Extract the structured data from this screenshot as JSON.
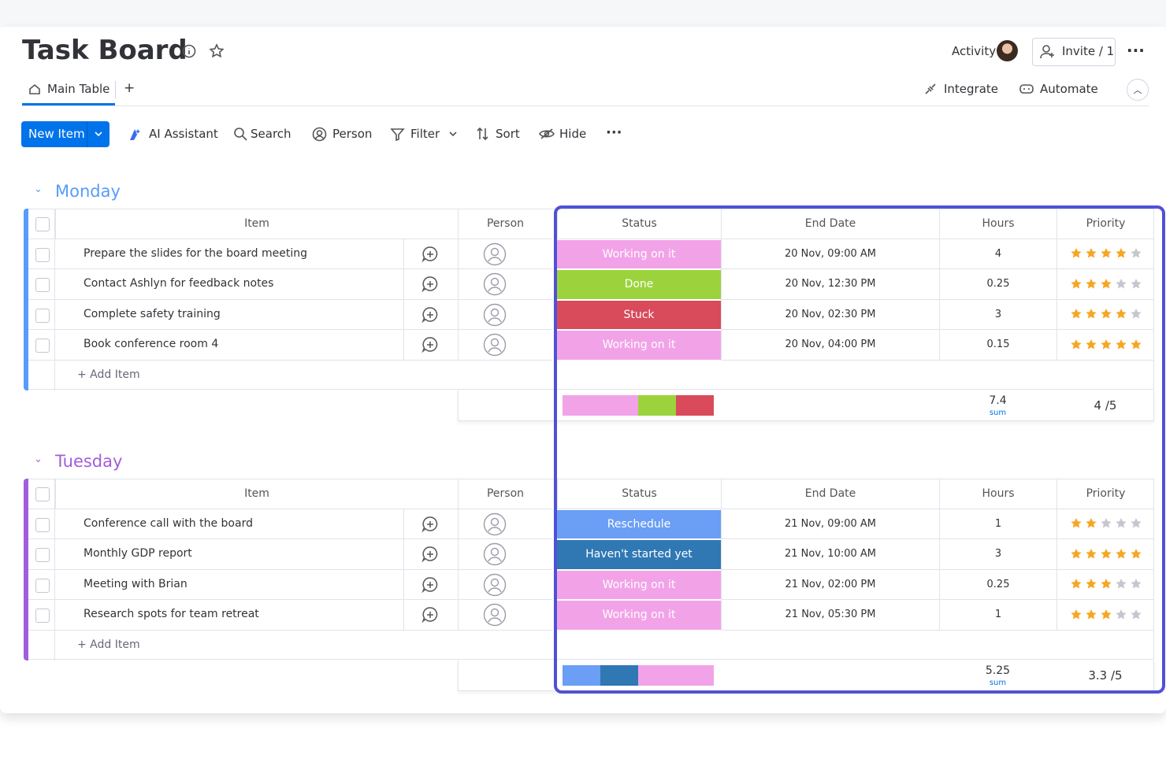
{
  "header": {
    "title": "Task Board",
    "activity": "Activity",
    "invite": "Invite / 1"
  },
  "tabs": {
    "main": "Main Table",
    "add": "+",
    "integrate": "Integrate",
    "automate": "Automate"
  },
  "toolbar": {
    "new_item": "New Item",
    "ai": "AI Assistant",
    "search": "Search",
    "person": "Person",
    "filter": "Filter",
    "sort": "Sort",
    "hide": "Hide"
  },
  "groups": [
    {
      "name": "Monday",
      "color": "#579bfc",
      "columns": [
        "Item",
        "Person",
        "Status",
        "End Date",
        "Hours",
        "Priority"
      ],
      "rows": [
        {
          "item": "Prepare the slides for the board meeting",
          "status": "Working on it",
          "status_color": "#f2a3e8",
          "end_date": "20 Nov, 09:00 AM",
          "hours": 4,
          "priority": 4
        },
        {
          "item": "Contact Ashlyn for feedback notes",
          "status": "Done",
          "status_color": "#9cd33c",
          "end_date": "20 Nov, 12:30 PM",
          "hours": 0.25,
          "priority": 3
        },
        {
          "item": "Complete safety training",
          "status": "Stuck",
          "status_color": "#d94a5b",
          "end_date": "20 Nov, 02:30 PM",
          "hours": 3,
          "priority": 4
        },
        {
          "item": "Book conference room 4",
          "status": "Working on it",
          "status_color": "#f2a3e8",
          "end_date": "20 Nov, 04:00 PM",
          "hours": 0.15,
          "priority": 5
        }
      ],
      "add_item": "+ Add Item",
      "hours_sum": 7.4,
      "sum_label": "sum",
      "priority_avg": "4 /5"
    },
    {
      "name": "Tuesday",
      "color": "#a25ddc",
      "columns": [
        "Item",
        "Person",
        "Status",
        "End Date",
        "Hours",
        "Priority"
      ],
      "rows": [
        {
          "item": "Conference call with the board",
          "status": "Reschedule",
          "status_color": "#6b9ef5",
          "end_date": "21 Nov, 09:00 AM",
          "hours": 1,
          "priority": 2
        },
        {
          "item": "Monthly GDP report",
          "status": "Haven't started yet",
          "status_color": "#2f78b4",
          "end_date": "21 Nov, 10:00 AM",
          "hours": 3,
          "priority": 5
        },
        {
          "item": "Meeting with Brian",
          "status": "Working on it",
          "status_color": "#f2a3e8",
          "end_date": "21 Nov, 02:00 PM",
          "hours": 0.25,
          "priority": 3
        },
        {
          "item": "Research spots for team retreat",
          "status": "Working on it",
          "status_color": "#f2a3e8",
          "end_date": "21 Nov, 05:30 PM",
          "hours": 1,
          "priority": 3
        }
      ],
      "add_item": "+ Add Item",
      "hours_sum": 5.25,
      "sum_label": "sum",
      "priority_avg": "3.3 /5"
    }
  ]
}
